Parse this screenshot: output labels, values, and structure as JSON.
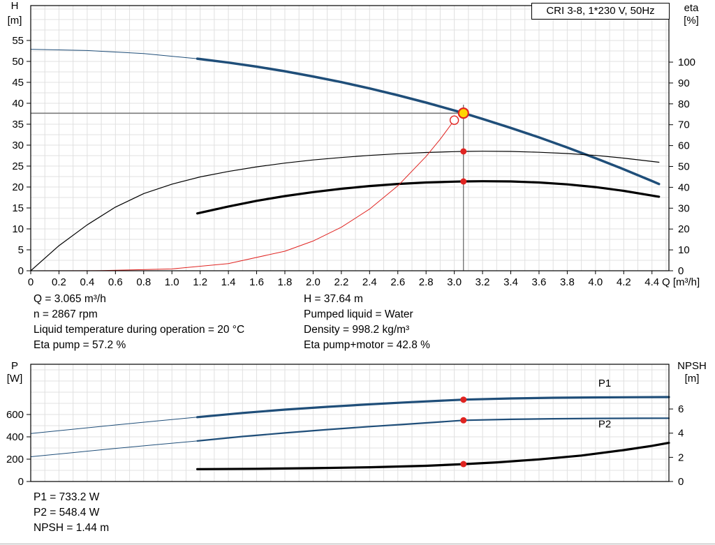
{
  "title_box": "CRI 3-8, 1*230 V, 50Hz",
  "colors": {
    "blue": "#1f4e79",
    "black": "#000000",
    "red": "#e02421",
    "grid": "#e0e0e0",
    "frame": "#000000",
    "crosshair": "#444444",
    "duty_yellow": "#ffd400"
  },
  "axis_headers": {
    "top_left_symbol": "H",
    "top_left_unit": "[m]",
    "top_right_symbol": "eta",
    "top_right_unit": "[%]",
    "bottom_left_symbol": "P",
    "bottom_left_unit": "[W]",
    "bottom_right_symbol": "NPSH",
    "bottom_right_unit": "[m]"
  },
  "results": {
    "top_left": [
      "Q = 3.065 m³/h",
      "n = 2867 rpm",
      "Liquid temperature during operation = 20 °C",
      "Eta pump = 57.2 %"
    ],
    "top_right": [
      "H = 37.64 m",
      "Pumped liquid = Water",
      "Density = 998.2 kg/m³",
      "Eta pump+motor = 42.8 %"
    ],
    "bottom": [
      "P1 = 733.2 W",
      "P2 = 548.4 W",
      "NPSH = 1.44 m"
    ]
  },
  "chart_data": [
    {
      "name": "qh-eta-chart",
      "type": "line",
      "title": "CRI 3-8, 1*230 V, 50Hz",
      "plot": {
        "l": 44,
        "r": 958,
        "t": 8,
        "b": 388
      },
      "x": {
        "label": "Q [m³/h]",
        "min": 0,
        "max": 4.52,
        "grid_step": 0.1,
        "ticks": [
          [
            0,
            "0"
          ],
          [
            0.2,
            "0.2"
          ],
          [
            0.4,
            "0.4"
          ],
          [
            0.6,
            "0.6"
          ],
          [
            0.8,
            "0.8"
          ],
          [
            1,
            "1.0"
          ],
          [
            1.2,
            "1.2"
          ],
          [
            1.4,
            "1.4"
          ],
          [
            1.6,
            "1.6"
          ],
          [
            1.8,
            "1.8"
          ],
          [
            2,
            "2.0"
          ],
          [
            2.2,
            "2.2"
          ],
          [
            2.4,
            "2.4"
          ],
          [
            2.6,
            "2.6"
          ],
          [
            2.8,
            "2.8"
          ],
          [
            3,
            "3.0"
          ],
          [
            3.2,
            "3.2"
          ],
          [
            3.4,
            "3.4"
          ],
          [
            3.6,
            "3.6"
          ],
          [
            3.8,
            "3.8"
          ],
          [
            4,
            "4.0"
          ],
          [
            4.2,
            "4.2"
          ],
          [
            4.4,
            "4.4"
          ]
        ]
      },
      "y_left": {
        "label": "H [m]",
        "min": 0,
        "max": 63.33,
        "grid_step": 2.5,
        "ticks": [
          [
            0,
            "0"
          ],
          [
            5,
            "5"
          ],
          [
            10,
            "10"
          ],
          [
            15,
            "15"
          ],
          [
            20,
            "20"
          ],
          [
            25,
            "25"
          ],
          [
            30,
            "30"
          ],
          [
            35,
            "35"
          ],
          [
            40,
            "40"
          ],
          [
            45,
            "45"
          ],
          [
            50,
            "50"
          ],
          [
            55,
            "55"
          ]
        ]
      },
      "y_right": {
        "label": "eta [%]",
        "min": 0,
        "max": 127.1,
        "ticks": [
          [
            0,
            "0"
          ],
          [
            10,
            "10"
          ],
          [
            20,
            "20"
          ],
          [
            30,
            "30"
          ],
          [
            40,
            "40"
          ],
          [
            50,
            "50"
          ],
          [
            60,
            "60"
          ],
          [
            70,
            "70"
          ],
          [
            80,
            "80"
          ],
          [
            90,
            "90"
          ],
          [
            100,
            "100"
          ]
        ]
      },
      "crosshair": {
        "q": 3.065,
        "v": 37.64
      },
      "series": [
        {
          "name": "pump-curve-extension",
          "axis": "left",
          "color": "blue",
          "width": 1,
          "points": [
            [
              0,
              52.9
            ],
            [
              0.4,
              52.6
            ],
            [
              0.8,
              51.86
            ],
            [
              1.18,
              50.64
            ]
          ]
        },
        {
          "name": "pump-curve",
          "axis": "left",
          "color": "blue",
          "width": 3.5,
          "points": [
            [
              1.18,
              50.64
            ],
            [
              1.4,
              49.72
            ],
            [
              1.6,
              48.74
            ],
            [
              1.8,
              47.64
            ],
            [
              2.0,
              46.4
            ],
            [
              2.2,
              45.04
            ],
            [
              2.4,
              43.54
            ],
            [
              2.6,
              41.91
            ],
            [
              2.8,
              40.16
            ],
            [
              3.0,
              38.28
            ],
            [
              3.065,
              37.64
            ],
            [
              3.2,
              36.26
            ],
            [
              3.4,
              34.12
            ],
            [
              3.6,
              31.84
            ],
            [
              3.8,
              29.44
            ],
            [
              4.0,
              26.9
            ],
            [
              4.2,
              24.24
            ],
            [
              4.4,
              21.44
            ],
            [
              4.45,
              20.72
            ]
          ]
        },
        {
          "name": "eta-pump-curve",
          "axis": "right",
          "color": "black",
          "width": 1.2,
          "points": [
            [
              0,
              0
            ],
            [
              0.2,
              12
            ],
            [
              0.4,
              22
            ],
            [
              0.6,
              30.5
            ],
            [
              0.8,
              37
            ],
            [
              1.0,
              41.5
            ],
            [
              1.2,
              45
            ],
            [
              1.4,
              47.6
            ],
            [
              1.6,
              49.8
            ],
            [
              1.8,
              51.6
            ],
            [
              2.0,
              53.1
            ],
            [
              2.2,
              54.3
            ],
            [
              2.4,
              55.3
            ],
            [
              2.6,
              56.1
            ],
            [
              2.8,
              56.7
            ],
            [
              3.0,
              57.1
            ],
            [
              3.065,
              57.2
            ],
            [
              3.2,
              57.3
            ],
            [
              3.4,
              57.2
            ],
            [
              3.6,
              56.8
            ],
            [
              3.8,
              56.2
            ],
            [
              4.0,
              55.3
            ],
            [
              4.2,
              54.0
            ],
            [
              4.45,
              52.0
            ]
          ]
        },
        {
          "name": "eta-pump-motor-curve",
          "axis": "right",
          "color": "black",
          "width": 3.2,
          "points": [
            [
              1.18,
              27.5
            ],
            [
              1.4,
              30.8
            ],
            [
              1.6,
              33.5
            ],
            [
              1.8,
              35.8
            ],
            [
              2.0,
              37.7
            ],
            [
              2.2,
              39.3
            ],
            [
              2.4,
              40.6
            ],
            [
              2.6,
              41.6
            ],
            [
              2.8,
              42.3
            ],
            [
              3.0,
              42.7
            ],
            [
              3.065,
              42.8
            ],
            [
              3.2,
              42.9
            ],
            [
              3.4,
              42.8
            ],
            [
              3.6,
              42.3
            ],
            [
              3.8,
              41.4
            ],
            [
              4.0,
              40.1
            ],
            [
              4.2,
              38.3
            ],
            [
              4.45,
              35.5
            ]
          ]
        },
        {
          "name": "system-curve",
          "axis": "left",
          "color": "red",
          "width": 1,
          "points": [
            [
              0,
              0
            ],
            [
              0.5,
              0.03
            ],
            [
              1.0,
              0.44
            ],
            [
              1.4,
              1.71
            ],
            [
              1.8,
              4.66
            ],
            [
              2.0,
              7.1
            ],
            [
              2.2,
              10.4
            ],
            [
              2.4,
              14.73
            ],
            [
              2.6,
              20.29
            ],
            [
              2.8,
              27.3
            ],
            [
              2.9,
              31.4
            ],
            [
              3.0,
              35.96
            ]
          ]
        }
      ],
      "markers": [
        {
          "name": "system-curve-end-marker",
          "type": "open",
          "axis": "left",
          "q": 3.0,
          "v": 35.96
        },
        {
          "name": "duty-point-marker",
          "type": "duty",
          "axis": "left",
          "q": 3.065,
          "v": 37.64
        },
        {
          "name": "eta-pump-duty-dot",
          "type": "dot",
          "axis": "right",
          "q": 3.065,
          "v": 57.2
        },
        {
          "name": "eta-pump-motor-duty-dot",
          "type": "dot",
          "axis": "right",
          "q": 3.065,
          "v": 42.8
        }
      ],
      "annotations": []
    },
    {
      "name": "power-npsh-chart",
      "type": "line",
      "title": "Power and NPSH curves",
      "plot": {
        "l": 44,
        "r": 958,
        "t": 522,
        "b": 690
      },
      "x": {
        "label": "",
        "min": 0,
        "max": 4.52,
        "grid_step": 0.1,
        "ticks": []
      },
      "y_left": {
        "label": "P [W]",
        "min": 0,
        "max": 1050,
        "grid_step": 100,
        "ticks": [
          [
            0,
            "0"
          ],
          [
            200,
            "200"
          ],
          [
            400,
            "400"
          ],
          [
            600,
            "600"
          ]
        ]
      },
      "y_right": {
        "label": "NPSH [m]",
        "min": 0,
        "max": 9.7,
        "ticks": [
          [
            0,
            "0"
          ],
          [
            2,
            "2"
          ],
          [
            4,
            "4"
          ],
          [
            6,
            "6"
          ]
        ]
      },
      "series": [
        {
          "name": "p1-curve-extension",
          "axis": "left",
          "color": "blue",
          "width": 1,
          "points": [
            [
              0,
              430
            ],
            [
              0.3,
              468
            ],
            [
              0.6,
              506
            ],
            [
              0.9,
              543
            ],
            [
              1.18,
              576
            ]
          ]
        },
        {
          "name": "p1-curve",
          "axis": "left",
          "color": "blue",
          "width": 3.2,
          "points": [
            [
              1.18,
              576
            ],
            [
              1.5,
              614
            ],
            [
              1.8,
              644
            ],
            [
              2.1,
              669
            ],
            [
              2.4,
              691
            ],
            [
              2.7,
              711
            ],
            [
              3.065,
              733.2
            ],
            [
              3.4,
              744
            ],
            [
              3.7,
              750
            ],
            [
              4.0,
              753
            ],
            [
              4.3,
              755
            ],
            [
              4.52,
              756
            ]
          ]
        },
        {
          "name": "p2-curve-extension",
          "axis": "left",
          "color": "blue",
          "width": 1,
          "points": [
            [
              0,
              222
            ],
            [
              0.3,
              259
            ],
            [
              0.6,
              296
            ],
            [
              0.9,
              331
            ],
            [
              1.18,
              363
            ]
          ]
        },
        {
          "name": "p2-curve",
          "axis": "left",
          "color": "blue",
          "width": 2.2,
          "points": [
            [
              1.18,
              363
            ],
            [
              1.5,
              403
            ],
            [
              1.8,
              435
            ],
            [
              2.1,
              465
            ],
            [
              2.4,
              492
            ],
            [
              2.7,
              516
            ],
            [
              3.065,
              548.4
            ],
            [
              3.4,
              557
            ],
            [
              3.7,
              562
            ],
            [
              4.0,
              565
            ],
            [
              4.3,
              566
            ],
            [
              4.52,
              567
            ]
          ]
        },
        {
          "name": "npsh-curve",
          "axis": "right",
          "color": "black",
          "width": 3.2,
          "points": [
            [
              1.18,
              1.02
            ],
            [
              1.6,
              1.05
            ],
            [
              2.0,
              1.1
            ],
            [
              2.4,
              1.18
            ],
            [
              2.8,
              1.3
            ],
            [
              3.065,
              1.44
            ],
            [
              3.3,
              1.58
            ],
            [
              3.6,
              1.83
            ],
            [
              3.9,
              2.15
            ],
            [
              4.2,
              2.6
            ],
            [
              4.4,
              2.95
            ],
            [
              4.52,
              3.2
            ]
          ]
        }
      ],
      "markers": [
        {
          "name": "p1-duty-dot",
          "type": "dot",
          "axis": "left",
          "q": 3.065,
          "v": 733.2
        },
        {
          "name": "p2-duty-dot",
          "type": "dot",
          "axis": "left",
          "q": 3.065,
          "v": 548.4
        },
        {
          "name": "npsh-duty-dot",
          "type": "dot",
          "axis": "right",
          "q": 3.065,
          "v": 1.44
        }
      ],
      "annotations": [
        {
          "name": "p1-curve-label",
          "text": "P1",
          "axis": "left",
          "q": 4.02,
          "v": 850
        },
        {
          "name": "p2-curve-label",
          "text": "P2",
          "axis": "left",
          "q": 4.02,
          "v": 485
        }
      ]
    }
  ]
}
